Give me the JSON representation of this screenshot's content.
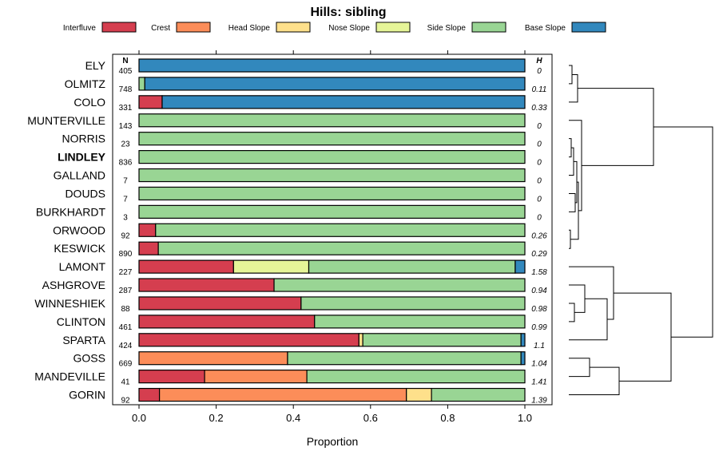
{
  "chart_data": {
    "type": "bar",
    "subtype": "stacked-horizontal-proportion",
    "title": "Hills: sibling",
    "xlabel": "Proportion",
    "ylabel": "",
    "xlim": [
      0,
      1
    ],
    "xticks": [
      "0.0",
      "0.2",
      "0.4",
      "0.6",
      "0.8",
      "1.0"
    ],
    "n_header": "N",
    "h_header": "H",
    "legend_position": "top",
    "classes": [
      {
        "name": "Interfluve",
        "color": "#D53E4F"
      },
      {
        "name": "Crest",
        "color": "#FC8D59"
      },
      {
        "name": "Head Slope",
        "color": "#FEE08B"
      },
      {
        "name": "Nose Slope",
        "color": "#E6F598"
      },
      {
        "name": "Side Slope",
        "color": "#99D594"
      },
      {
        "name": "Base Slope",
        "color": "#3288BD"
      }
    ],
    "rows": [
      {
        "name": "ELY",
        "n": "405",
        "h": "0",
        "bold": false,
        "values": [
          0,
          0,
          0,
          0,
          0,
          1.0
        ]
      },
      {
        "name": "OLMITZ",
        "n": "748",
        "h": "0.11",
        "bold": false,
        "values": [
          0,
          0,
          0,
          0,
          0.015,
          0.985
        ]
      },
      {
        "name": "COLO",
        "n": "331",
        "h": "0.33",
        "bold": false,
        "values": [
          0.06,
          0,
          0,
          0,
          0,
          0.94
        ]
      },
      {
        "name": "MUNTERVILLE",
        "n": "143",
        "h": "0",
        "bold": false,
        "values": [
          0,
          0,
          0,
          0,
          1.0,
          0
        ]
      },
      {
        "name": "NORRIS",
        "n": "23",
        "h": "0",
        "bold": false,
        "values": [
          0,
          0,
          0,
          0,
          1.0,
          0
        ]
      },
      {
        "name": "LINDLEY",
        "n": "836",
        "h": "0",
        "bold": true,
        "values": [
          0,
          0,
          0,
          0,
          1.0,
          0
        ]
      },
      {
        "name": "GALLAND",
        "n": "7",
        "h": "0",
        "bold": false,
        "values": [
          0,
          0,
          0,
          0,
          1.0,
          0
        ]
      },
      {
        "name": "DOUDS",
        "n": "7",
        "h": "0",
        "bold": false,
        "values": [
          0,
          0,
          0,
          0,
          1.0,
          0
        ]
      },
      {
        "name": "BURKHARDT",
        "n": "3",
        "h": "0",
        "bold": false,
        "values": [
          0,
          0,
          0,
          0,
          1.0,
          0
        ]
      },
      {
        "name": "ORWOOD",
        "n": "92",
        "h": "0.26",
        "bold": false,
        "values": [
          0.043,
          0,
          0,
          0,
          0.957,
          0
        ]
      },
      {
        "name": "KESWICK",
        "n": "890",
        "h": "0.29",
        "bold": false,
        "values": [
          0.05,
          0,
          0,
          0,
          0.95,
          0
        ]
      },
      {
        "name": "LAMONT",
        "n": "227",
        "h": "1.58",
        "bold": false,
        "values": [
          0.245,
          0,
          0,
          0.195,
          0.535,
          0.025
        ]
      },
      {
        "name": "ASHGROVE",
        "n": "287",
        "h": "0.94",
        "bold": false,
        "values": [
          0.35,
          0,
          0,
          0,
          0.65,
          0
        ]
      },
      {
        "name": "WINNESHIEK",
        "n": "88",
        "h": "0.98",
        "bold": false,
        "values": [
          0.42,
          0,
          0,
          0,
          0.58,
          0
        ]
      },
      {
        "name": "CLINTON",
        "n": "461",
        "h": "0.99",
        "bold": false,
        "values": [
          0.455,
          0,
          0,
          0,
          0.545,
          0
        ]
      },
      {
        "name": "SPARTA",
        "n": "424",
        "h": "1.1",
        "bold": false,
        "values": [
          0.57,
          0,
          0.01,
          0,
          0.41,
          0.01
        ]
      },
      {
        "name": "GOSS",
        "n": "669",
        "h": "1.04",
        "bold": false,
        "values": [
          0,
          0.385,
          0,
          0,
          0.605,
          0.01
        ]
      },
      {
        "name": "MANDEVILLE",
        "n": "41",
        "h": "1.41",
        "bold": false,
        "values": [
          0.17,
          0.265,
          0,
          0,
          0.565,
          0
        ]
      },
      {
        "name": "GORIN",
        "n": "92",
        "h": "1.39",
        "bold": false,
        "values": [
          0.053,
          0.64,
          0.065,
          0,
          0.242,
          0
        ]
      }
    ]
  }
}
